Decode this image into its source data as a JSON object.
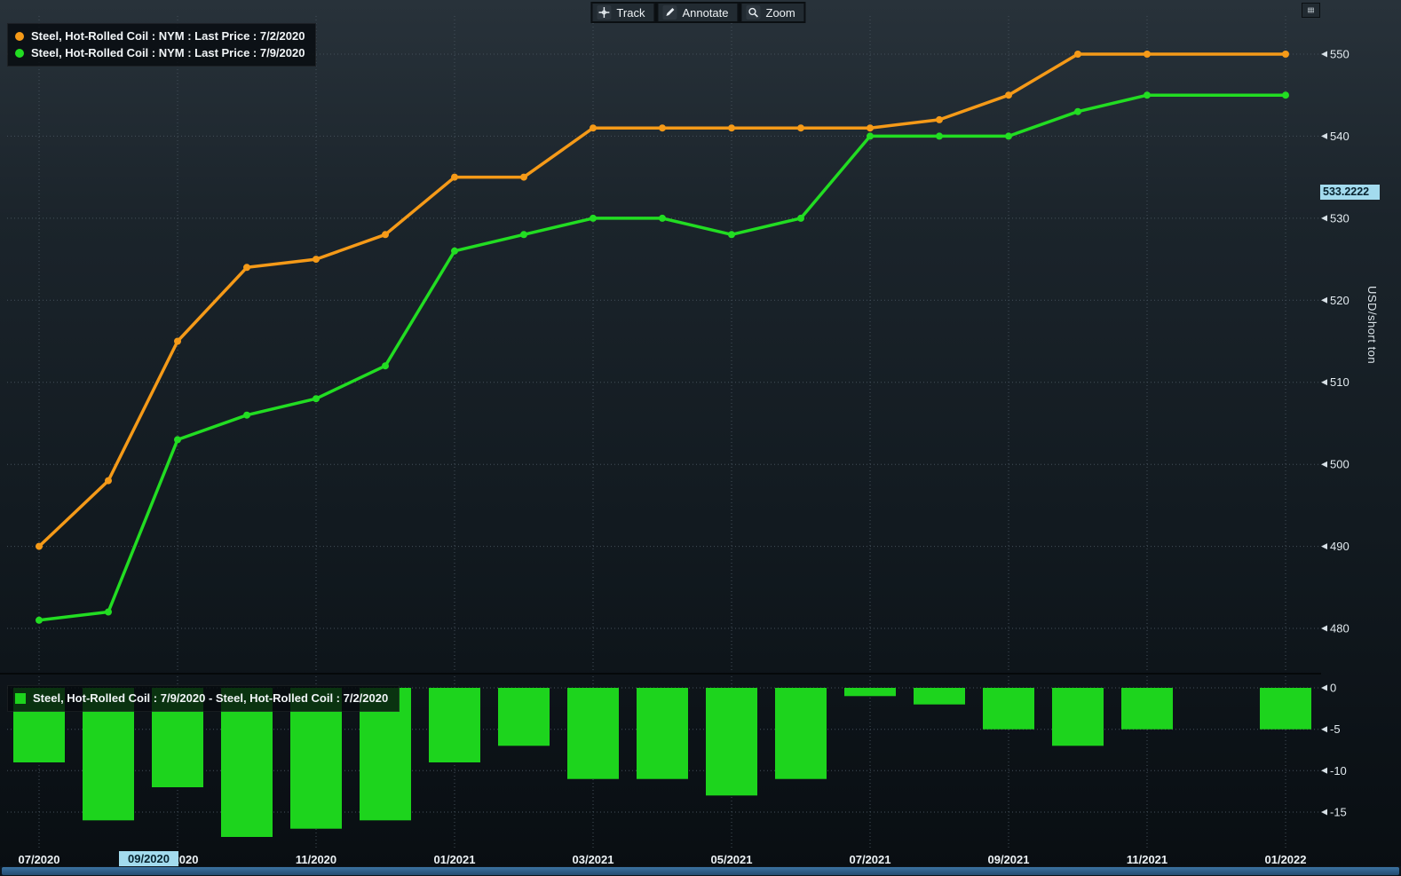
{
  "toolbar": {
    "track": "Track",
    "annotate": "Annotate",
    "zoom": "Zoom"
  },
  "legend": {
    "series1": "Steel, Hot-Rolled Coil : NYM : Last Price : 7/2/2020",
    "series2": "Steel, Hot-Rolled Coil : NYM : Last Price : 7/9/2020",
    "diff": "Steel, Hot-Rolled Coil : 7/9/2020 - Steel, Hot-Rolled Coil : 7/2/2020"
  },
  "axis": {
    "y_title": "USD/short ton",
    "current_value": "533.2222",
    "highlighted_date": "09/2020"
  },
  "colors": {
    "series1": "#f59a18",
    "series2": "#22dd22",
    "bars": "#1dd41d",
    "badge_bg": "#a3dbee",
    "grid": "#44505a"
  },
  "chart_data": [
    {
      "type": "line",
      "title": "Steel, Hot-Rolled Coil forward curves",
      "ylabel": "USD/short ton",
      "ylim": [
        477,
        554
      ],
      "yticks": [
        550,
        540,
        530,
        520,
        510,
        500,
        490,
        480
      ],
      "grid": true,
      "legend_position": "top-left",
      "x": [
        "07/2020",
        "08/2020",
        "09/2020",
        "10/2020",
        "11/2020",
        "12/2020",
        "01/2021",
        "02/2021",
        "03/2021",
        "04/2021",
        "05/2021",
        "06/2021",
        "07/2021",
        "08/2021",
        "09/2021",
        "10/2021",
        "11/2021",
        "12/2021",
        "01/2022"
      ],
      "x_tick_labels": [
        "07/2020",
        "09/2020",
        "11/2020",
        "01/2021",
        "03/2021",
        "05/2021",
        "07/2021",
        "09/2021",
        "11/2021",
        "01/2022"
      ],
      "series": [
        {
          "name": "Steel, Hot-Rolled Coil : NYM : Last Price : 7/2/2020",
          "color": "#f59a18",
          "values": [
            490,
            498,
            515,
            524,
            525,
            528,
            535,
            535,
            541,
            541,
            541,
            541,
            541,
            542,
            545,
            550,
            550,
            null,
            550
          ]
        },
        {
          "name": "Steel, Hot-Rolled Coil : NYM : Last Price : 7/9/2020",
          "color": "#22dd22",
          "values": [
            481,
            482,
            503,
            506,
            508,
            512,
            526,
            528,
            530,
            530,
            528,
            530,
            540,
            540,
            540,
            543,
            545,
            null,
            545
          ]
        }
      ]
    },
    {
      "type": "bar",
      "title": "Steel, Hot-Rolled Coil : 7/9/2020 - Steel, Hot-Rolled Coil : 7/2/2020",
      "ylim": [
        -19,
        1
      ],
      "yticks": [
        0,
        -5,
        -10,
        -15
      ],
      "categories": [
        "07/2020",
        "08/2020",
        "09/2020",
        "10/2020",
        "11/2020",
        "12/2020",
        "01/2021",
        "02/2021",
        "03/2021",
        "04/2021",
        "05/2021",
        "06/2021",
        "07/2021",
        "08/2021",
        "09/2021",
        "10/2021",
        "11/2021",
        "12/2021",
        "01/2022"
      ],
      "values": [
        -9,
        -16,
        -12,
        -18,
        -17,
        -16,
        -9,
        -7,
        -11,
        -11,
        -13,
        -11,
        -1,
        -2,
        -5,
        -7,
        -5,
        null,
        -5
      ]
    }
  ]
}
